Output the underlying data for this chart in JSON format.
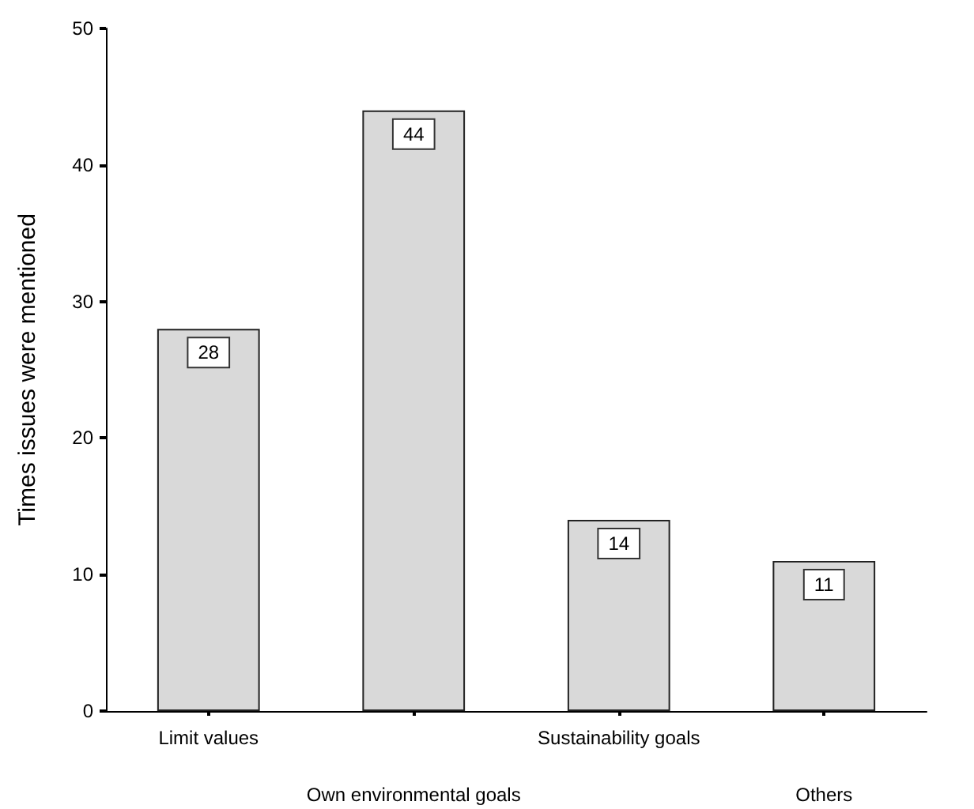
{
  "chart_data": {
    "type": "bar",
    "ylabel": "Times issues were mentioned",
    "categories": [
      "Limit values",
      "Own environmental goals",
      "Sustainability goals",
      "Others"
    ],
    "values": [
      28,
      44,
      14,
      11
    ],
    "color": "#d9d9d9",
    "ylim": [
      0,
      50
    ],
    "yticks": [
      0,
      10,
      20,
      30,
      40,
      50
    ],
    "grid": false,
    "data_labels": true
  }
}
